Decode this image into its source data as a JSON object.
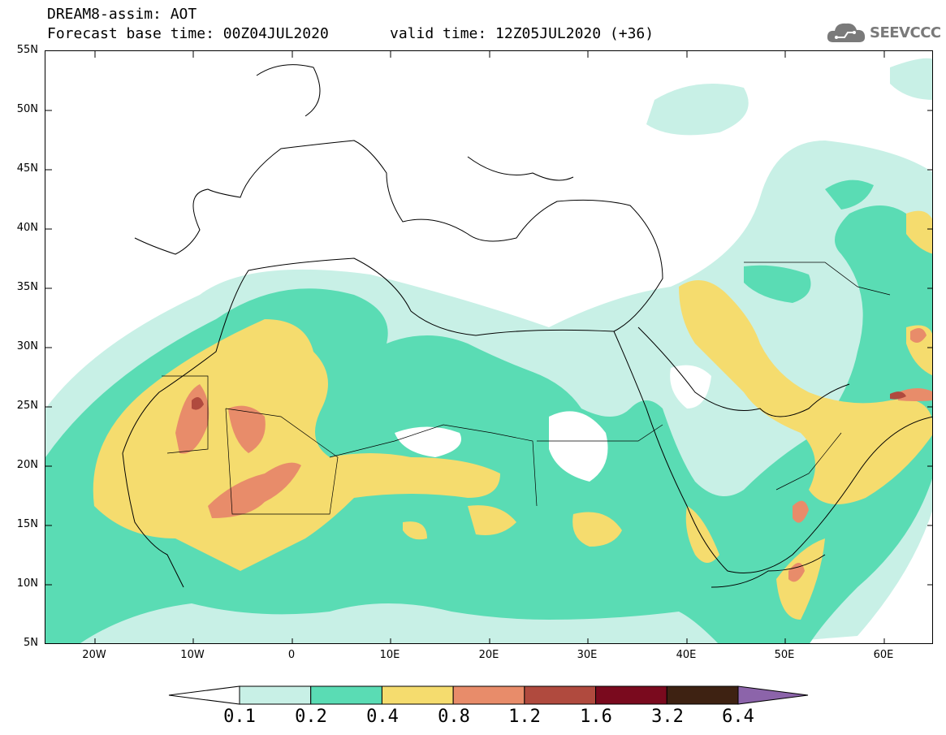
{
  "title_line1": "DREAM8-assim: AOT",
  "title_base": "Forecast base time: 00Z04JUL2020",
  "title_valid": "valid time: 12Z05JUL2020 (+36)",
  "logo_text": "SEEVCCC",
  "lat_labels": [
    "55N",
    "50N",
    "45N",
    "40N",
    "35N",
    "30N",
    "25N",
    "20N",
    "15N",
    "10N",
    "5N"
  ],
  "lon_labels": [
    "20W",
    "10W",
    "0",
    "10E",
    "20E",
    "30E",
    "40E",
    "50E",
    "60E"
  ],
  "colorbar": {
    "levels": [
      "0.1",
      "0.2",
      "0.4",
      "0.8",
      "1.2",
      "1.6",
      "3.2",
      "6.4"
    ],
    "colors": [
      "#ffffff",
      "#c8f0e6",
      "#5adcb4",
      "#f5dc6e",
      "#e88c6a",
      "#b04a3e",
      "#7a0a1e",
      "#3e2212",
      "#8c64aa"
    ]
  }
}
